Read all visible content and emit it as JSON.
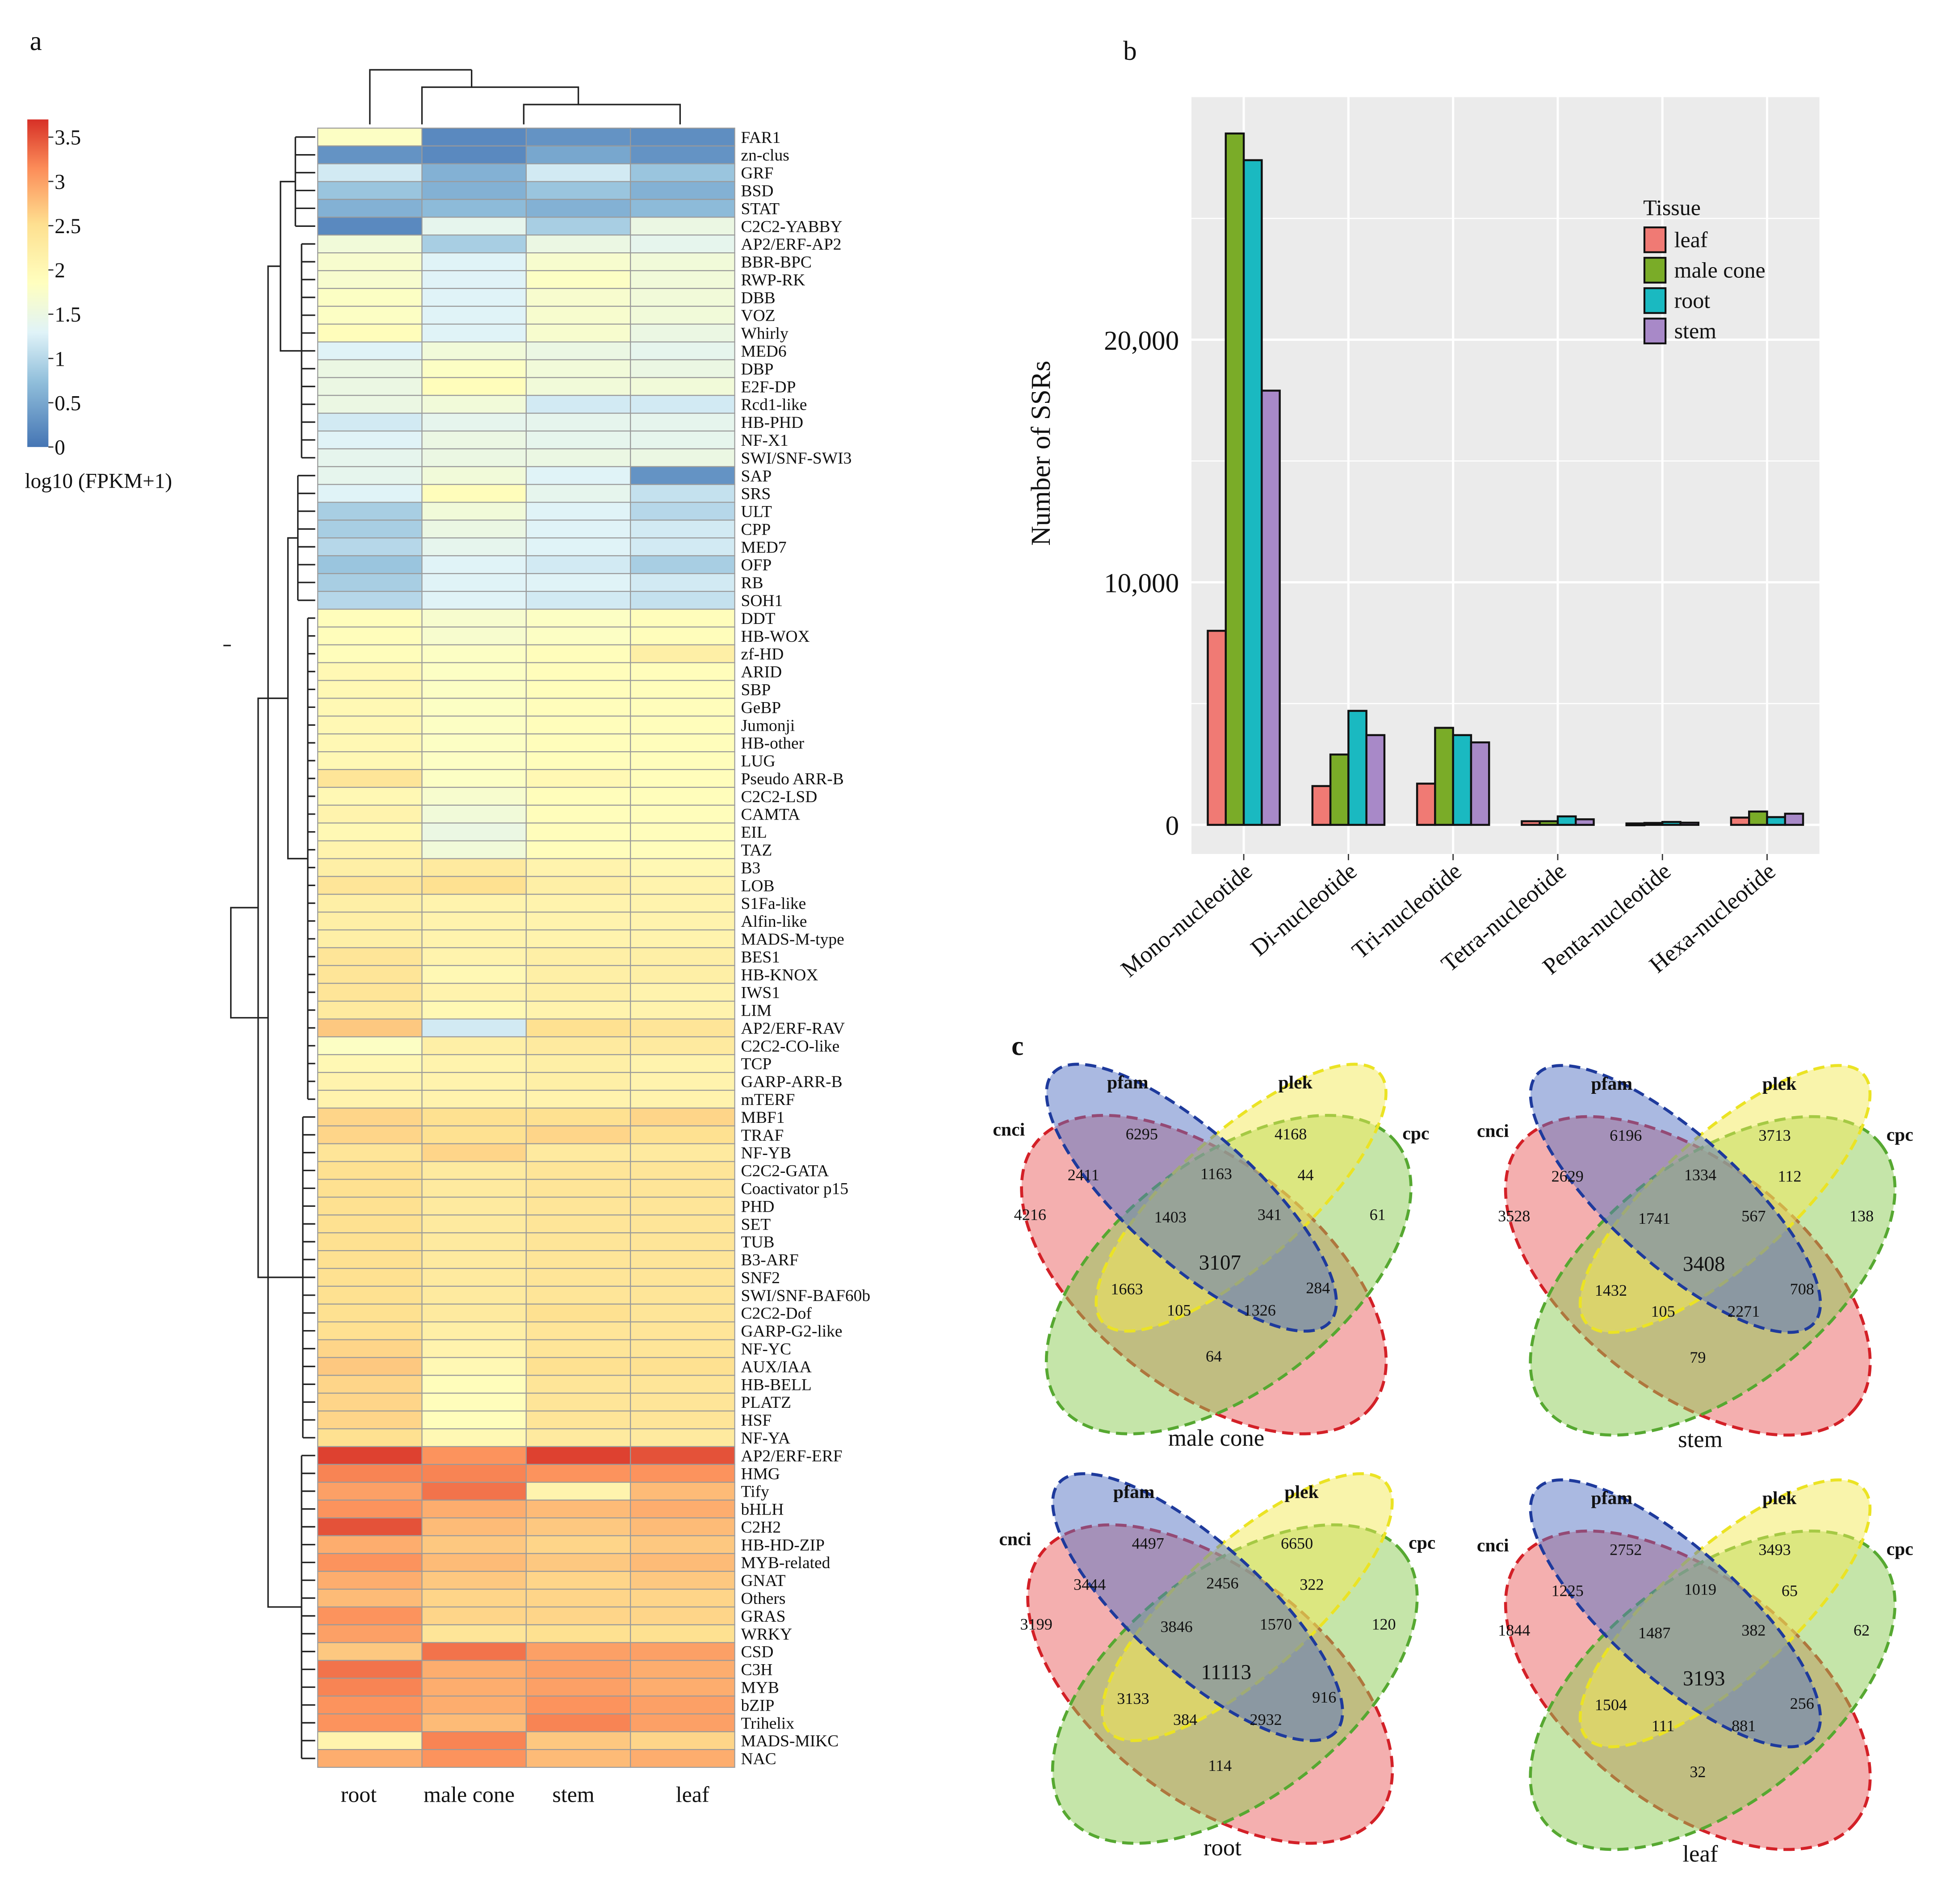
{
  "panel_labels": {
    "a": "a",
    "b": "b",
    "c": "c"
  },
  "chart_data": [
    {
      "type": "heatmap",
      "id": "a",
      "legend_title": "log10 (FPKM+1)",
      "legend_range": [
        0,
        3.7
      ],
      "legend_ticks": [
        {
          "value": 3.5,
          "label": "3.5"
        },
        {
          "value": 3,
          "label": "3"
        },
        {
          "value": 2.5,
          "label": "2.5"
        },
        {
          "value": 2,
          "label": "2"
        },
        {
          "value": 1.5,
          "label": "1.5"
        },
        {
          "value": 1,
          "label": "1"
        },
        {
          "value": 0.5,
          "label": "0.5"
        },
        {
          "value": 0,
          "label": "0"
        }
      ],
      "colors": {
        "low": "#4575b4",
        "mid": "#ffffbf",
        "high": "#d73027"
      },
      "columns": [
        "root",
        "male cone",
        "stem",
        "leaf"
      ],
      "rows": [
        {
          "name": "FAR1",
          "values": [
            1.8,
            0.2,
            0.3,
            0.25
          ]
        },
        {
          "name": "zn-clus",
          "values": [
            0.3,
            0.2,
            0.5,
            0.3
          ]
        },
        {
          "name": "GRF",
          "values": [
            1.2,
            0.6,
            1.2,
            0.8
          ]
        },
        {
          "name": "BSD",
          "values": [
            0.8,
            0.6,
            0.8,
            0.6
          ]
        },
        {
          "name": "STAT",
          "values": [
            0.6,
            0.7,
            0.6,
            0.7
          ]
        },
        {
          "name": "C2C2-YABBY",
          "values": [
            0.2,
            1.4,
            0.9,
            1.5
          ]
        },
        {
          "name": "AP2/ERF-AP2",
          "values": [
            1.6,
            0.9,
            1.5,
            1.4
          ]
        },
        {
          "name": "BBR-BPC",
          "values": [
            1.7,
            1.3,
            1.7,
            1.6
          ]
        },
        {
          "name": "RWP-RK",
          "values": [
            1.7,
            1.3,
            1.8,
            1.6
          ]
        },
        {
          "name": "DBB",
          "values": [
            1.8,
            1.3,
            1.7,
            1.6
          ]
        },
        {
          "name": "VOZ",
          "values": [
            1.8,
            1.3,
            1.7,
            1.6
          ]
        },
        {
          "name": "Whirly",
          "values": [
            1.9,
            1.3,
            1.7,
            1.5
          ]
        },
        {
          "name": "MED6",
          "values": [
            1.3,
            1.6,
            1.5,
            1.4
          ]
        },
        {
          "name": "DBP",
          "values": [
            1.5,
            1.8,
            1.6,
            1.5
          ]
        },
        {
          "name": "E2F-DP",
          "values": [
            1.5,
            1.9,
            1.6,
            1.6
          ]
        },
        {
          "name": "Rcd1-like",
          "values": [
            1.5,
            1.6,
            1.2,
            1.2
          ]
        },
        {
          "name": "HB-PHD",
          "values": [
            1.2,
            1.4,
            1.4,
            1.4
          ]
        },
        {
          "name": "NF-X1",
          "values": [
            1.3,
            1.5,
            1.4,
            1.4
          ]
        },
        {
          "name": "SWI/SNF-SWI3",
          "values": [
            1.4,
            1.5,
            1.5,
            1.5
          ]
        },
        {
          "name": "SAP",
          "values": [
            1.4,
            1.6,
            1.3,
            0.3
          ]
        },
        {
          "name": "SRS",
          "values": [
            1.3,
            1.9,
            1.4,
            1.1
          ]
        },
        {
          "name": "ULT",
          "values": [
            0.9,
            1.6,
            1.3,
            1.0
          ]
        },
        {
          "name": "CPP",
          "values": [
            0.9,
            1.5,
            1.3,
            1.2
          ]
        },
        {
          "name": "MED7",
          "values": [
            1.0,
            1.4,
            1.3,
            1.2
          ]
        },
        {
          "name": "OFP",
          "values": [
            0.8,
            1.3,
            1.2,
            0.9
          ]
        },
        {
          "name": "RB",
          "values": [
            0.9,
            1.3,
            1.3,
            1.2
          ]
        },
        {
          "name": "SOH1",
          "values": [
            1.0,
            1.3,
            1.2,
            1.1
          ]
        },
        {
          "name": "DDT",
          "values": [
            1.9,
            1.7,
            1.8,
            1.9
          ]
        },
        {
          "name": "HB-WOX",
          "values": [
            1.9,
            1.7,
            1.8,
            1.9
          ]
        },
        {
          "name": "zf-HD",
          "values": [
            1.9,
            1.8,
            1.9,
            2.2
          ]
        },
        {
          "name": "ARID",
          "values": [
            2.0,
            1.8,
            1.9,
            1.9
          ]
        },
        {
          "name": "SBP",
          "values": [
            2.0,
            1.8,
            1.9,
            1.9
          ]
        },
        {
          "name": "GeBP",
          "values": [
            2.0,
            1.8,
            1.9,
            1.9
          ]
        },
        {
          "name": "Jumonji",
          "values": [
            2.0,
            1.8,
            1.9,
            1.9
          ]
        },
        {
          "name": "HB-other",
          "values": [
            2.0,
            1.8,
            1.9,
            1.9
          ]
        },
        {
          "name": "LUG",
          "values": [
            2.0,
            1.8,
            1.9,
            1.9
          ]
        },
        {
          "name": "Pseudo ARR-B",
          "values": [
            2.4,
            1.8,
            2.0,
            1.9
          ]
        },
        {
          "name": "C2C2-LSD",
          "values": [
            2.0,
            1.7,
            1.9,
            1.9
          ]
        },
        {
          "name": "CAMTA",
          "values": [
            2.1,
            1.6,
            1.9,
            1.9
          ]
        },
        {
          "name": "EIL",
          "values": [
            2.0,
            1.5,
            1.9,
            1.9
          ]
        },
        {
          "name": "TAZ",
          "values": [
            2.1,
            1.6,
            1.9,
            1.9
          ]
        },
        {
          "name": "B3",
          "values": [
            2.2,
            2.3,
            2.1,
            2.0
          ]
        },
        {
          "name": "LOB",
          "values": [
            2.4,
            2.5,
            2.2,
            2.1
          ]
        },
        {
          "name": "S1Fa-like",
          "values": [
            2.2,
            2.1,
            2.1,
            2.1
          ]
        },
        {
          "name": "Alfin-like",
          "values": [
            2.2,
            2.1,
            2.1,
            2.1
          ]
        },
        {
          "name": "MADS-M-type",
          "values": [
            2.2,
            2.1,
            2.1,
            2.1
          ]
        },
        {
          "name": "BES1",
          "values": [
            2.4,
            2.1,
            2.2,
            2.2
          ]
        },
        {
          "name": "HB-KNOX",
          "values": [
            2.4,
            2.0,
            2.2,
            2.2
          ]
        },
        {
          "name": "IWS1",
          "values": [
            2.4,
            2.1,
            2.2,
            2.1
          ]
        },
        {
          "name": "LIM",
          "values": [
            2.3,
            2.0,
            2.1,
            2.1
          ]
        },
        {
          "name": "AP2/ERF-RAV",
          "values": [
            2.7,
            1.2,
            2.5,
            2.4
          ]
        },
        {
          "name": "C2C2-CO-like",
          "values": [
            1.8,
            2.2,
            2.3,
            2.3
          ]
        },
        {
          "name": "TCP",
          "values": [
            2.0,
            2.1,
            2.2,
            2.1
          ]
        },
        {
          "name": "GARP-ARR-B",
          "values": [
            2.1,
            2.1,
            2.2,
            2.1
          ]
        },
        {
          "name": "mTERF",
          "values": [
            2.1,
            2.1,
            2.1,
            2.1
          ]
        },
        {
          "name": "MBF1",
          "values": [
            2.6,
            2.5,
            2.5,
            2.6
          ]
        },
        {
          "name": "TRAF",
          "values": [
            2.6,
            2.5,
            2.6,
            2.5
          ]
        },
        {
          "name": "NF-YB",
          "values": [
            2.4,
            2.6,
            2.3,
            2.3
          ]
        },
        {
          "name": "C2C2-GATA",
          "values": [
            2.5,
            2.3,
            2.4,
            2.4
          ]
        },
        {
          "name": "Coactivator p15",
          "values": [
            2.5,
            2.3,
            2.4,
            2.4
          ]
        },
        {
          "name": "PHD",
          "values": [
            2.5,
            2.3,
            2.4,
            2.4
          ]
        },
        {
          "name": "SET",
          "values": [
            2.5,
            2.3,
            2.4,
            2.4
          ]
        },
        {
          "name": "TUB",
          "values": [
            2.5,
            2.3,
            2.4,
            2.4
          ]
        },
        {
          "name": "B3-ARF",
          "values": [
            2.5,
            2.3,
            2.4,
            2.4
          ]
        },
        {
          "name": "SNF2",
          "values": [
            2.5,
            2.3,
            2.4,
            2.4
          ]
        },
        {
          "name": "SWI/SNF-BAF60b",
          "values": [
            2.5,
            2.3,
            2.4,
            2.4
          ]
        },
        {
          "name": "C2C2-Dof",
          "values": [
            2.5,
            2.3,
            2.5,
            2.4
          ]
        },
        {
          "name": "GARP-G2-like",
          "values": [
            2.5,
            2.2,
            2.4,
            2.4
          ]
        },
        {
          "name": "NF-YC",
          "values": [
            2.6,
            2.1,
            2.4,
            2.4
          ]
        },
        {
          "name": "AUX/IAA",
          "values": [
            2.7,
            2.0,
            2.5,
            2.5
          ]
        },
        {
          "name": "HB-BELL",
          "values": [
            2.6,
            1.9,
            2.4,
            2.4
          ]
        },
        {
          "name": "PLATZ",
          "values": [
            2.6,
            1.9,
            2.4,
            2.4
          ]
        },
        {
          "name": "HSF",
          "values": [
            2.6,
            1.9,
            2.4,
            2.4
          ]
        },
        {
          "name": "NF-YA",
          "values": [
            2.5,
            2.0,
            2.3,
            2.3
          ]
        },
        {
          "name": "AP2/ERF-ERF",
          "values": [
            3.6,
            3.1,
            3.6,
            3.5
          ]
        },
        {
          "name": "HMG",
          "values": [
            3.2,
            3.2,
            3.1,
            3.1
          ]
        },
        {
          "name": "Tify",
          "values": [
            3.0,
            3.3,
            2.1,
            2.8
          ]
        },
        {
          "name": "bHLH",
          "values": [
            3.1,
            2.9,
            2.8,
            2.9
          ]
        },
        {
          "name": "C2H2",
          "values": [
            3.5,
            2.8,
            2.7,
            2.8
          ]
        },
        {
          "name": "HB-HD-ZIP",
          "values": [
            2.9,
            2.7,
            2.6,
            2.7
          ]
        },
        {
          "name": "MYB-related",
          "values": [
            3.1,
            2.8,
            2.7,
            2.8
          ]
        },
        {
          "name": "GNAT",
          "values": [
            2.9,
            2.7,
            2.6,
            2.7
          ]
        },
        {
          "name": "Others",
          "values": [
            2.8,
            2.6,
            2.6,
            2.6
          ]
        },
        {
          "name": "GRAS",
          "values": [
            3.1,
            2.6,
            2.6,
            2.6
          ]
        },
        {
          "name": "WRKY",
          "values": [
            3.0,
            2.4,
            2.5,
            2.5
          ]
        },
        {
          "name": "CSD",
          "values": [
            2.7,
            3.3,
            3.0,
            3.0
          ]
        },
        {
          "name": "C3H",
          "values": [
            3.3,
            2.9,
            3.0,
            2.9
          ]
        },
        {
          "name": "MYB",
          "values": [
            3.2,
            2.9,
            3.0,
            2.9
          ]
        },
        {
          "name": "bZIP",
          "values": [
            3.1,
            2.9,
            3.1,
            3.0
          ]
        },
        {
          "name": "Trihelix",
          "values": [
            3.1,
            2.8,
            3.2,
            3.0
          ]
        },
        {
          "name": "MADS-MIKC",
          "values": [
            2.1,
            3.2,
            2.7,
            2.6
          ]
        },
        {
          "name": "NAC",
          "values": [
            2.9,
            3.1,
            2.8,
            2.9
          ]
        }
      ]
    },
    {
      "type": "bar",
      "id": "b",
      "categories": [
        "Mono-nucleotide",
        "Di-nucleotide",
        "Tri-nucleotide",
        "Tetra-nucleotide",
        "Penta-nucleotide",
        "Hexa-nucleotide"
      ],
      "series": [
        {
          "name": "leaf",
          "color": "#f07a74",
          "values": [
            8000,
            1600,
            1700,
            150,
            60,
            300
          ]
        },
        {
          "name": "male cone",
          "color": "#7aac28",
          "values": [
            28500,
            2900,
            4000,
            150,
            80,
            550
          ]
        },
        {
          "name": "root",
          "color": "#1ab9c1",
          "values": [
            27400,
            4700,
            3700,
            350,
            120,
            320
          ]
        },
        {
          "name": "stem",
          "color": "#a889c8",
          "values": [
            17900,
            3700,
            3400,
            230,
            90,
            460
          ]
        }
      ],
      "title": "",
      "xlabel": "",
      "ylabel": "Number of SSRs",
      "ylim": [
        -1200,
        30000
      ],
      "yticks": [
        {
          "value": 0,
          "label": "0"
        },
        {
          "value": 10000,
          "label": "10,000"
        },
        {
          "value": 20000,
          "label": "20,000"
        }
      ],
      "legend_title": "Tissue",
      "legend_position": "top-right",
      "grid": true
    },
    {
      "type": "venn",
      "id": "c",
      "sets": [
        "cnci",
        "pfam",
        "plek",
        "cpc"
      ],
      "set_colors": {
        "cnci": "#ea5f60",
        "pfam": "#5573c4",
        "plek": "#f3ea57",
        "cpc": "#8ccc54"
      },
      "region_order": [
        "cnci_only",
        "pfam_only",
        "plek_only",
        "cpc_only",
        "cnci_pfam",
        "pfam_plek",
        "plek_cpc",
        "cnci_pfam_plek",
        "pfam_plek_cpc",
        "all",
        "pfam_cpc",
        "cnci_plek",
        "cnci_plek_cpc",
        "cnci_pfam_cpc",
        "cnci_cpc"
      ],
      "diagrams": [
        {
          "tissue": "male cone",
          "regions": {
            "cnci_only": 4216,
            "pfam_only": 6295,
            "plek_only": 4168,
            "cpc_only": 61,
            "cnci_pfam": 2411,
            "pfam_plek": 1163,
            "plek_cpc": 44,
            "cnci_pfam_plek": 1403,
            "pfam_plek_cpc": 341,
            "all": 3107,
            "pfam_cpc": 284,
            "cnci_plek": 1663,
            "cnci_plek_cpc": 105,
            "cnci_pfam_cpc": 1326,
            "cnci_cpc": 64
          }
        },
        {
          "tissue": "stem",
          "regions": {
            "cnci_only": 3528,
            "pfam_only": 6196,
            "plek_only": 3713,
            "cpc_only": 138,
            "cnci_pfam": 2629,
            "pfam_plek": 1334,
            "plek_cpc": 112,
            "cnci_pfam_plek": 1741,
            "pfam_plek_cpc": 567,
            "all": 3408,
            "pfam_cpc": 708,
            "cnci_plek": 1432,
            "cnci_plek_cpc": 105,
            "cnci_pfam_cpc": 2271,
            "cnci_cpc": 79
          }
        },
        {
          "tissue": "root",
          "regions": {
            "cnci_only": 3199,
            "pfam_only": 4497,
            "plek_only": 6650,
            "cpc_only": 120,
            "cnci_pfam": 3444,
            "pfam_plek": 2456,
            "plek_cpc": 322,
            "cnci_pfam_plek": 3846,
            "pfam_plek_cpc": 1570,
            "all": 11113,
            "pfam_cpc": 916,
            "cnci_plek": 3133,
            "cnci_plek_cpc": 384,
            "cnci_pfam_cpc": 2932,
            "cnci_cpc": 114
          }
        },
        {
          "tissue": "leaf",
          "regions": {
            "cnci_only": 1844,
            "pfam_only": 2752,
            "plek_only": 3493,
            "cpc_only": 62,
            "cnci_pfam": 1225,
            "pfam_plek": 1019,
            "plek_cpc": 65,
            "cnci_pfam_plek": 1487,
            "pfam_plek_cpc": 382,
            "all": 3193,
            "pfam_cpc": 256,
            "cnci_plek": 1504,
            "cnci_plek_cpc": 111,
            "cnci_pfam_cpc": 881,
            "cnci_cpc": 32
          }
        }
      ]
    }
  ]
}
